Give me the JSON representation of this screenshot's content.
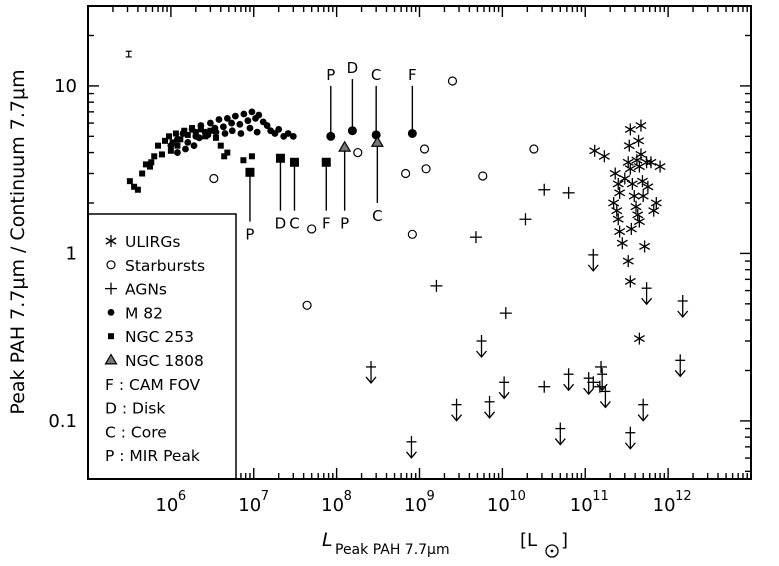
{
  "chart_data": {
    "type": "scatter",
    "title": "",
    "xlabel_main": "L",
    "xlabel_sub": "Peak PAH 7.7μm",
    "xlabel_unit": "[L",
    "xlabel_unit_close": "]",
    "ylabel": "Peak PAH 7.7μm / Continuum 7.7μm",
    "xscale": "log",
    "yscale": "log",
    "xlim": [
      100000,
      10000000000000.0
    ],
    "ylim": [
      0.045,
      30
    ],
    "legend_placement": "bottom-left",
    "x_ticks": [
      {
        "base": "10",
        "exp": "6"
      },
      {
        "base": "10",
        "exp": "7"
      },
      {
        "base": "10",
        "exp": "8"
      },
      {
        "base": "10",
        "exp": "9"
      },
      {
        "base": "10",
        "exp": "10"
      },
      {
        "base": "10",
        "exp": "11"
      },
      {
        "base": "10",
        "exp": "12"
      }
    ],
    "y_ticks": [
      "0.1",
      "1",
      "10"
    ],
    "legend": [
      {
        "symbol": "asterisk",
        "label": "ULIRGs"
      },
      {
        "symbol": "open-circle",
        "label": "Starbursts"
      },
      {
        "symbol": "plus",
        "label": "AGNs"
      },
      {
        "symbol": "filled-circle",
        "label": "M 82"
      },
      {
        "symbol": "filled-square",
        "label": "NGC 253"
      },
      {
        "symbol": "filled-triangle",
        "label": "NGC 1808"
      },
      {
        "symbol": "none",
        "label": "F : CAM FOV"
      },
      {
        "symbol": "none",
        "label": "D : Disk"
      },
      {
        "symbol": "none",
        "label": "C : Core"
      },
      {
        "symbol": "none",
        "label": "P : MIR Peak"
      }
    ],
    "series": [
      {
        "name": "ULIRGs",
        "marker": "asterisk",
        "points": [
          [
            130000000000.0,
            4.1
          ],
          [
            170000000000.0,
            3.8
          ],
          [
            230000000000.0,
            3.0
          ],
          [
            250000000000.0,
            2.6
          ],
          [
            260000000000.0,
            2.3
          ],
          [
            220000000000.0,
            2.0
          ],
          [
            240000000000.0,
            1.8
          ],
          [
            250000000000.0,
            1.6
          ],
          [
            260000000000.0,
            1.35
          ],
          [
            280000000000.0,
            1.15
          ],
          [
            300000000000.0,
            2.8
          ],
          [
            330000000000.0,
            3.5
          ],
          [
            350000000000.0,
            3.2
          ],
          [
            370000000000.0,
            2.6
          ],
          [
            390000000000.0,
            2.2
          ],
          [
            410000000000.0,
            1.9
          ],
          [
            430000000000.0,
            1.7
          ],
          [
            450000000000.0,
            1.55
          ],
          [
            360000000000.0,
            1.4
          ],
          [
            340000000000.0,
            4.4
          ],
          [
            350000000000.0,
            5.5
          ],
          [
            420000000000.0,
            3.6
          ],
          [
            450000000000.0,
            3.3
          ],
          [
            470000000000.0,
            3.9
          ],
          [
            440000000000.0,
            4.7
          ],
          [
            470000000000.0,
            5.8
          ],
          [
            490000000000.0,
            2.7
          ],
          [
            500000000000.0,
            2.2
          ],
          [
            520000000000.0,
            1.1
          ],
          [
            550000000000.0,
            3.5
          ],
          [
            570000000000.0,
            2.5
          ],
          [
            620000000000.0,
            3.5
          ],
          [
            670000000000.0,
            1.8
          ],
          [
            720000000000.0,
            2.0
          ],
          [
            800000000000.0,
            3.3
          ],
          [
            330000000000.0,
            0.9
          ],
          [
            350000000000.0,
            0.68
          ],
          [
            450000000000.0,
            0.31
          ]
        ]
      },
      {
        "name": "Starbursts",
        "marker": "open-circle",
        "points": [
          [
            3300000.0,
            2.8
          ],
          [
            50000000.0,
            1.4
          ],
          [
            44000000.0,
            0.49
          ],
          [
            180000000.0,
            4.0
          ],
          [
            680000000.0,
            3.0
          ],
          [
            820000000.0,
            1.3
          ],
          [
            1150000000.0,
            4.2
          ],
          [
            1200000000.0,
            3.2
          ],
          [
            2500000000.0,
            10.7
          ],
          [
            5800000000.0,
            2.9
          ],
          [
            24000000000.0,
            4.2
          ]
        ]
      },
      {
        "name": "AGNs",
        "marker": "plus",
        "points": [
          [
            1600000000.0,
            0.64
          ],
          [
            4800000000.0,
            1.25
          ],
          [
            11000000000.0,
            0.44
          ],
          [
            19000000000.0,
            1.6
          ],
          [
            32000000000.0,
            2.4
          ],
          [
            32000000000.0,
            0.16
          ],
          [
            63000000000.0,
            2.3
          ],
          [
            125000000000.0,
            0.17
          ],
          [
            155000000000.0,
            0.21
          ],
          [
            150000000000.0,
            0.16
          ]
        ]
      },
      {
        "name": "AGN upper limits",
        "marker": "plus-down-arrow",
        "points": [
          [
            260000000.0,
            0.21
          ],
          [
            800000000.0,
            0.075
          ],
          [
            2800000000.0,
            0.125
          ],
          [
            5600000000.0,
            0.3
          ],
          [
            7000000000.0,
            0.13
          ],
          [
            10500000000.0,
            0.17
          ],
          [
            50000000000.0,
            0.09
          ],
          [
            63000000000.0,
            0.19
          ],
          [
            110000000000.0,
            0.18
          ],
          [
            160000000000.0,
            0.19
          ],
          [
            175000000000.0,
            0.15
          ],
          [
            500000000000.0,
            0.125
          ],
          [
            125000000000.0,
            0.98
          ],
          [
            350000000000.0,
            0.085
          ],
          [
            550000000000.0,
            0.62
          ],
          [
            1500000000000.0,
            0.52
          ],
          [
            1400000000000.0,
            0.23
          ]
        ]
      },
      {
        "name": "M 82",
        "marker": "filled-circle",
        "points": [
          [
            1000000.0,
            4.4
          ],
          [
            1200000.0,
            4.8
          ],
          [
            1400000.0,
            5.2
          ],
          [
            1600000.0,
            4.6
          ],
          [
            1800000.0,
            5.5
          ],
          [
            2000000.0,
            5.0
          ],
          [
            2300000.0,
            5.8
          ],
          [
            2600000.0,
            5.3
          ],
          [
            3000000.0,
            6.0
          ],
          [
            3400000.0,
            5.6
          ],
          [
            3800000.0,
            6.3
          ],
          [
            4300000.0,
            5.7
          ],
          [
            4800000.0,
            6.4
          ],
          [
            5400000.0,
            6.0
          ],
          [
            6000000.0,
            6.6
          ],
          [
            6800000.0,
            5.9
          ],
          [
            7600000.0,
            6.8
          ],
          [
            8500000.0,
            6.2
          ],
          [
            9500000.0,
            7.0
          ],
          [
            10500000.0,
            6.4
          ],
          [
            11500000.0,
            6.7
          ],
          [
            13000000.0,
            6.1
          ],
          [
            14500000.0,
            5.8
          ],
          [
            16000000.0,
            5.4
          ],
          [
            18000000.0,
            5.2
          ],
          [
            20000000.0,
            5.5
          ],
          [
            23000000.0,
            5.0
          ],
          [
            26000000.0,
            5.2
          ],
          [
            30000000.0,
            5.0
          ],
          [
            1200000.0,
            4.0
          ],
          [
            1500000.0,
            4.2
          ],
          [
            1900000.0,
            4.4
          ],
          [
            2200000.0,
            4.9
          ],
          [
            2800000.0,
            5.1
          ],
          [
            3500000.0,
            5.3
          ],
          [
            4500000.0,
            5.2
          ],
          [
            5500000.0,
            5.4
          ],
          [
            7000000.0,
            5.2
          ],
          [
            9000000.0,
            5.6
          ],
          [
            11000000.0,
            5.3
          ]
        ]
      },
      {
        "name": "NGC 253",
        "marker": "filled-square",
        "points": [
          [
            320000.0,
            2.7
          ],
          [
            360000.0,
            2.5
          ],
          [
            400000.0,
            2.4
          ],
          [
            450000.0,
            3.0
          ],
          [
            500000.0,
            3.4
          ],
          [
            560000.0,
            3.3
          ],
          [
            630000.0,
            3.8
          ],
          [
            700000.0,
            4.4
          ],
          [
            780000.0,
            3.9
          ],
          [
            850000.0,
            4.7
          ],
          [
            950000.0,
            5.0
          ],
          [
            1050000.0,
            4.6
          ],
          [
            1150000.0,
            5.2
          ],
          [
            1300000.0,
            4.8
          ],
          [
            1450000.0,
            5.4
          ],
          [
            1600000.0,
            5.1
          ],
          [
            1800000.0,
            5.6
          ],
          [
            2000000.0,
            5.3
          ],
          [
            2300000.0,
            5.5
          ],
          [
            2600000.0,
            5.0
          ],
          [
            3000000.0,
            5.4
          ],
          [
            3500000.0,
            4.9
          ],
          [
            4000000.0,
            4.4
          ],
          [
            4800000.0,
            4.0
          ],
          [
            1000000.0,
            4.1
          ],
          [
            1200000.0,
            4.4
          ],
          [
            580000.0,
            3.5
          ],
          [
            4400000.0,
            3.8
          ],
          [
            7500000.0,
            3.6
          ],
          [
            9500000.0,
            3.8
          ]
        ]
      }
    ],
    "annotations": [
      {
        "letter": "P",
        "label_side": "below",
        "marker": "filled-square",
        "x": 9000000.0,
        "from": 3.05,
        "to": 1.55
      },
      {
        "letter": "D",
        "label_side": "below",
        "marker": "filled-square",
        "x": 21000000.0,
        "from": 3.7,
        "to": 1.8
      },
      {
        "letter": "C",
        "label_side": "below",
        "marker": "filled-square",
        "x": 31000000.0,
        "from": 3.5,
        "to": 1.8
      },
      {
        "letter": "F",
        "label_side": "below",
        "marker": "filled-square",
        "x": 75000000.0,
        "from": 3.5,
        "to": 1.8
      },
      {
        "letter": "P",
        "label_side": "above",
        "marker": "filled-circle",
        "x": 85000000.0,
        "from": 5.0,
        "to": 10.0
      },
      {
        "letter": "D",
        "label_side": "above",
        "marker": "filled-circle",
        "x": 155000000.0,
        "from": 5.4,
        "to": 11.0
      },
      {
        "letter": "C",
        "label_side": "above",
        "marker": "filled-circle",
        "x": 300000000.0,
        "from": 5.1,
        "to": 10.0
      },
      {
        "letter": "F",
        "label_side": "above",
        "marker": "filled-circle",
        "x": 820000000.0,
        "from": 5.2,
        "to": 10.0
      },
      {
        "letter": "P",
        "label_side": "below",
        "marker": "filled-triangle",
        "x": 125000000.0,
        "from": 4.3,
        "to": 1.8
      },
      {
        "letter": "C",
        "label_side": "below",
        "marker": "filled-triangle",
        "x": 310000000.0,
        "from": 4.6,
        "to": 2.0
      }
    ],
    "error_bar": {
      "x": 310000.0,
      "y": 15.5,
      "dy": 0.6
    }
  }
}
